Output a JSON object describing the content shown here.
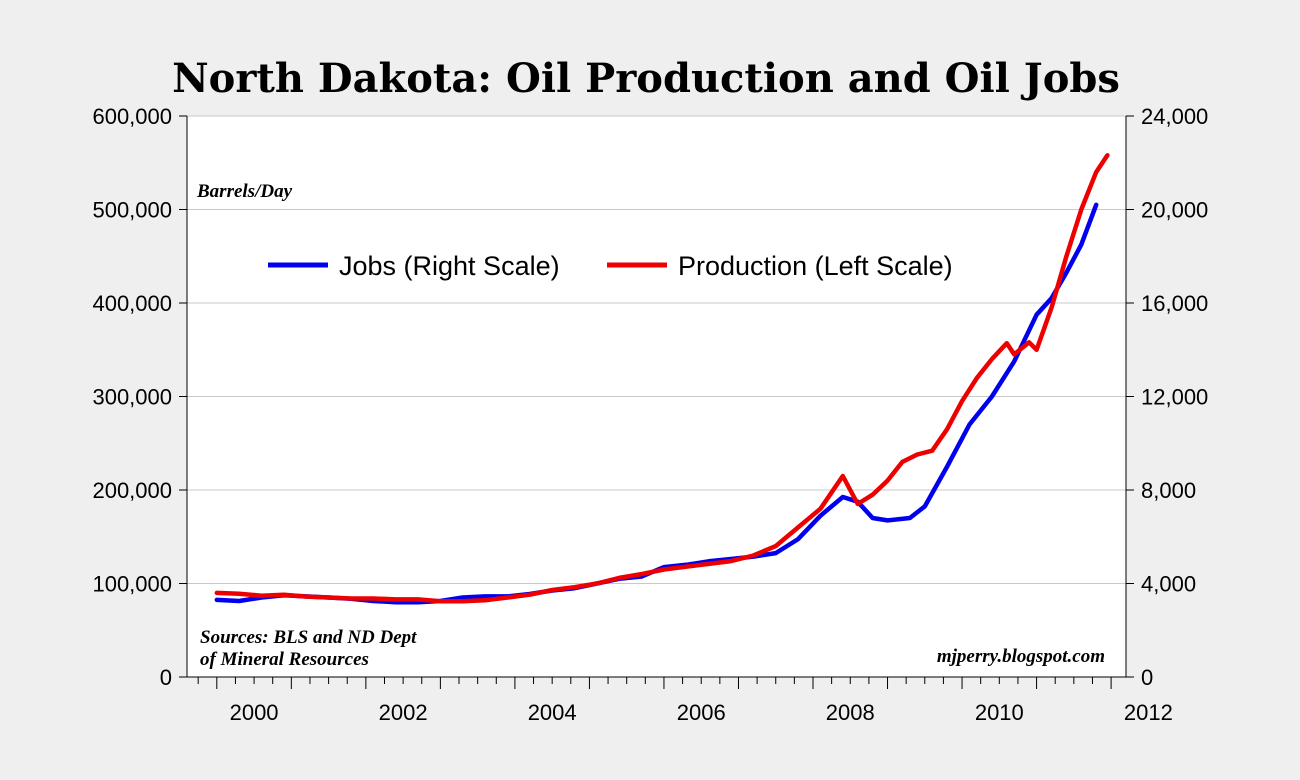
{
  "chart_data": {
    "type": "line",
    "title": "North Dakota: Oil Production and Oil Jobs",
    "left_axis": {
      "unit_label": "Barrels/Day",
      "range": [
        0,
        600000
      ],
      "ticks": [
        0,
        100000,
        200000,
        300000,
        400000,
        500000,
        600000
      ],
      "tick_labels": [
        "0",
        "100,000",
        "200,000",
        "300,000",
        "400,000",
        "500,000",
        "600,000"
      ]
    },
    "right_axis": {
      "range": [
        0,
        24000
      ],
      "ticks": [
        0,
        4000,
        8000,
        12000,
        16000,
        20000,
        24000
      ],
      "tick_labels": [
        "0",
        "4,000",
        "8,000",
        "12,000",
        "16,000",
        "20,000",
        "24,000"
      ]
    },
    "x_axis": {
      "range": [
        1999.6,
        2012.2
      ],
      "tick_labels": [
        "2000",
        "2002",
        "2004",
        "2006",
        "2008",
        "2010",
        "2012"
      ],
      "tick_values": [
        2000,
        2002,
        2004,
        2006,
        2008,
        2010,
        2012
      ]
    },
    "grid": true,
    "legend": {
      "placement": "top-left",
      "entries": [
        "Jobs (Right Scale)",
        "Production (Left Scale)"
      ]
    },
    "annotations": {
      "sources_line1": "Sources: BLS and ND Dept",
      "sources_line2": "of Mineral Resources",
      "credit": "mjperry.blogspot.com"
    },
    "series": [
      {
        "name": "Jobs (Right Scale)",
        "axis": "right",
        "color": "#0000ee",
        "points": [
          [
            2000.0,
            3300
          ],
          [
            2000.3,
            3250
          ],
          [
            2000.6,
            3400
          ],
          [
            2000.9,
            3500
          ],
          [
            2001.2,
            3450
          ],
          [
            2001.5,
            3400
          ],
          [
            2001.8,
            3350
          ],
          [
            2002.1,
            3250
          ],
          [
            2002.4,
            3200
          ],
          [
            2002.7,
            3200
          ],
          [
            2003.0,
            3250
          ],
          [
            2003.3,
            3400
          ],
          [
            2003.6,
            3450
          ],
          [
            2003.9,
            3450
          ],
          [
            2004.2,
            3550
          ],
          [
            2004.5,
            3700
          ],
          [
            2004.8,
            3800
          ],
          [
            2005.1,
            4000
          ],
          [
            2005.4,
            4200
          ],
          [
            2005.7,
            4300
          ],
          [
            2006.0,
            4700
          ],
          [
            2006.3,
            4800
          ],
          [
            2006.6,
            4950
          ],
          [
            2006.9,
            5050
          ],
          [
            2007.2,
            5150
          ],
          [
            2007.5,
            5300
          ],
          [
            2007.8,
            5900
          ],
          [
            2008.1,
            6900
          ],
          [
            2008.4,
            7700
          ],
          [
            2008.6,
            7500
          ],
          [
            2008.8,
            6800
          ],
          [
            2009.0,
            6700
          ],
          [
            2009.3,
            6800
          ],
          [
            2009.5,
            7300
          ],
          [
            2009.8,
            9000
          ],
          [
            2010.1,
            10800
          ],
          [
            2010.4,
            12000
          ],
          [
            2010.7,
            13500
          ],
          [
            2011.0,
            15500
          ],
          [
            2011.2,
            16200
          ],
          [
            2011.4,
            17300
          ],
          [
            2011.6,
            18500
          ],
          [
            2011.8,
            20200
          ]
        ]
      },
      {
        "name": "Production (Left Scale)",
        "axis": "left",
        "color": "#ee0000",
        "points": [
          [
            2000.0,
            90000
          ],
          [
            2000.3,
            89000
          ],
          [
            2000.6,
            87000
          ],
          [
            2000.9,
            88000
          ],
          [
            2001.2,
            86000
          ],
          [
            2001.5,
            85000
          ],
          [
            2001.8,
            84000
          ],
          [
            2002.1,
            84000
          ],
          [
            2002.4,
            83000
          ],
          [
            2002.7,
            83000
          ],
          [
            2003.0,
            81000
          ],
          [
            2003.3,
            81000
          ],
          [
            2003.6,
            82000
          ],
          [
            2003.9,
            85000
          ],
          [
            2004.2,
            88000
          ],
          [
            2004.5,
            93000
          ],
          [
            2004.8,
            96000
          ],
          [
            2005.1,
            100000
          ],
          [
            2005.4,
            106000
          ],
          [
            2005.7,
            110000
          ],
          [
            2006.0,
            115000
          ],
          [
            2006.3,
            118000
          ],
          [
            2006.6,
            121000
          ],
          [
            2006.9,
            124000
          ],
          [
            2007.2,
            130000
          ],
          [
            2007.5,
            140000
          ],
          [
            2007.8,
            160000
          ],
          [
            2008.1,
            180000
          ],
          [
            2008.4,
            215000
          ],
          [
            2008.6,
            185000
          ],
          [
            2008.8,
            195000
          ],
          [
            2009.0,
            210000
          ],
          [
            2009.2,
            230000
          ],
          [
            2009.4,
            238000
          ],
          [
            2009.6,
            242000
          ],
          [
            2009.8,
            265000
          ],
          [
            2010.0,
            295000
          ],
          [
            2010.2,
            320000
          ],
          [
            2010.4,
            340000
          ],
          [
            2010.6,
            357000
          ],
          [
            2010.7,
            345000
          ],
          [
            2010.9,
            358000
          ],
          [
            2011.0,
            350000
          ],
          [
            2011.2,
            395000
          ],
          [
            2011.4,
            450000
          ],
          [
            2011.6,
            500000
          ],
          [
            2011.8,
            540000
          ],
          [
            2011.95,
            558000
          ]
        ]
      }
    ]
  }
}
